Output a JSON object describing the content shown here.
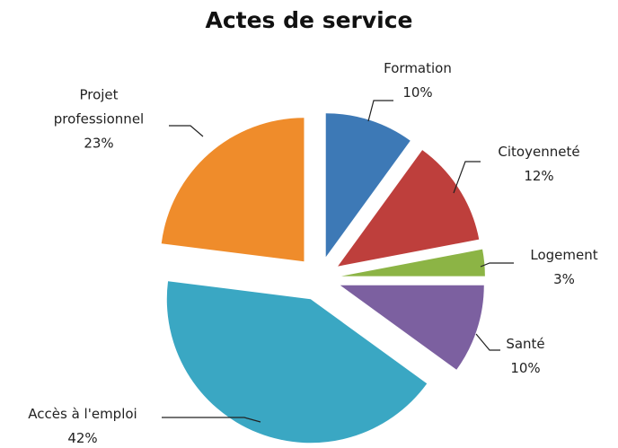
{
  "chart_data": {
    "type": "pie",
    "title": "Actes de service",
    "categories": [
      "Formation",
      "Citoyenneté",
      "Logement",
      "Santé",
      "Accès à l'emploi",
      "Projet professionnel"
    ],
    "values": [
      10,
      12,
      3,
      10,
      42,
      23
    ],
    "value_labels": [
      "10%",
      "12%",
      "3%",
      "10%",
      "42%",
      "23%"
    ],
    "colors": [
      "#3d79b6",
      "#be3f3c",
      "#8cb445",
      "#7c60a0",
      "#3aa7c3",
      "#ef8c2b"
    ],
    "exploded": true
  }
}
